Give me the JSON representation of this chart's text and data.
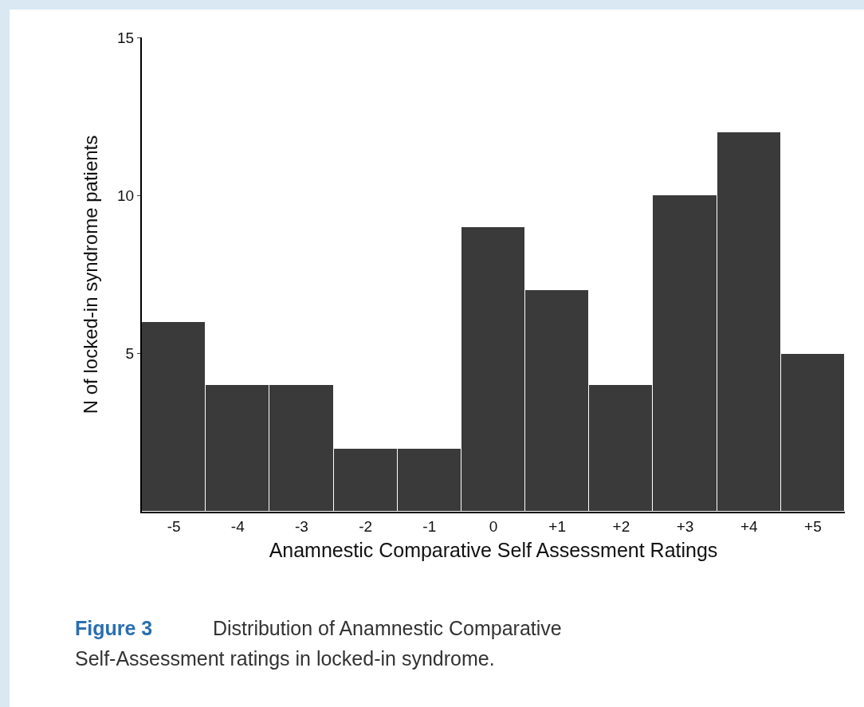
{
  "chart_data": {
    "type": "bar",
    "categories": [
      "-5",
      "-4",
      "-3",
      "-2",
      "-1",
      "0",
      "+1",
      "+2",
      "+3",
      "+4",
      "+5"
    ],
    "values": [
      6,
      4,
      4,
      2,
      2,
      9,
      7,
      4,
      10,
      12,
      5
    ],
    "color": "#3a3a3a",
    "xlabel": "Anamnestic Comparative Self Assessment Ratings",
    "ylabel": "N of locked-in syndrome patients",
    "ylim": [
      0,
      15
    ],
    "yticks": [
      5,
      10,
      15
    ],
    "grid": false,
    "legend": false,
    "annotations": [
      "Figure 3",
      "Distribution of Anamnestic Comparative\nSelf-Assessment ratings in locked-in syndrome."
    ]
  }
}
